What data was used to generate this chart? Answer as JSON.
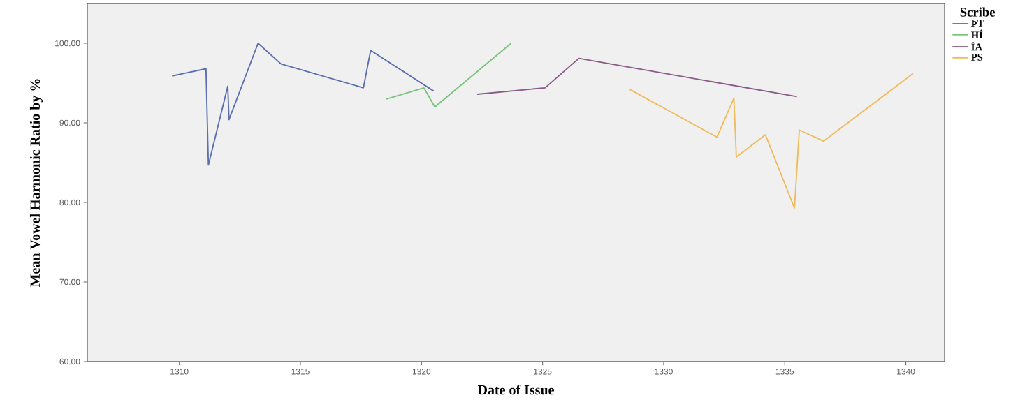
{
  "chart_data": {
    "type": "line",
    "xlabel": "Date of Issue",
    "ylabel": "Mean Vowel Harmonic Ratio by %",
    "legend_title": "Scribe",
    "legend": "right",
    "grid": false,
    "marker": "none",
    "line_style": "solid",
    "xlim": [
      1306.2,
      1341.6
    ],
    "ylim": [
      60,
      105
    ],
    "xticks": [
      1310,
      1315,
      1320,
      1325,
      1330,
      1335,
      1340
    ],
    "yticks": [
      {
        "value": 60,
        "label": "60.00"
      },
      {
        "value": 70,
        "label": "70.00"
      },
      {
        "value": 80,
        "label": "80.00"
      },
      {
        "value": 90,
        "label": "90.00"
      },
      {
        "value": 100,
        "label": "100.00"
      }
    ],
    "series": [
      {
        "name": "ÞT",
        "color": "#5b6fae",
        "x": [
          1309.7,
          1311.1,
          1311.2,
          1312.0,
          1312.05,
          1313.25,
          1314.2,
          1317.6,
          1317.9,
          1320.5
        ],
        "values": [
          95.9,
          96.8,
          84.7,
          94.6,
          90.4,
          100.0,
          97.4,
          94.4,
          99.1,
          94.0
        ]
      },
      {
        "name": "HÍ",
        "color": "#77c47a",
        "x": [
          1318.55,
          1320.1,
          1320.55,
          1323.7
        ],
        "values": [
          93.0,
          94.4,
          92.0,
          100.0
        ]
      },
      {
        "name": "İA",
        "color": "#8a5a88",
        "x": [
          1322.3,
          1325.1,
          1326.5,
          1335.5
        ],
        "values": [
          93.6,
          94.4,
          98.1,
          93.3
        ]
      },
      {
        "name": "PS",
        "color": "#f0bb5c",
        "x": [
          1328.6,
          1332.2,
          1332.9,
          1333.0,
          1334.2,
          1335.4,
          1335.6,
          1336.6,
          1340.3
        ],
        "values": [
          94.2,
          88.2,
          93.1,
          85.7,
          88.5,
          79.3,
          89.1,
          87.7,
          96.2
        ]
      }
    ]
  }
}
